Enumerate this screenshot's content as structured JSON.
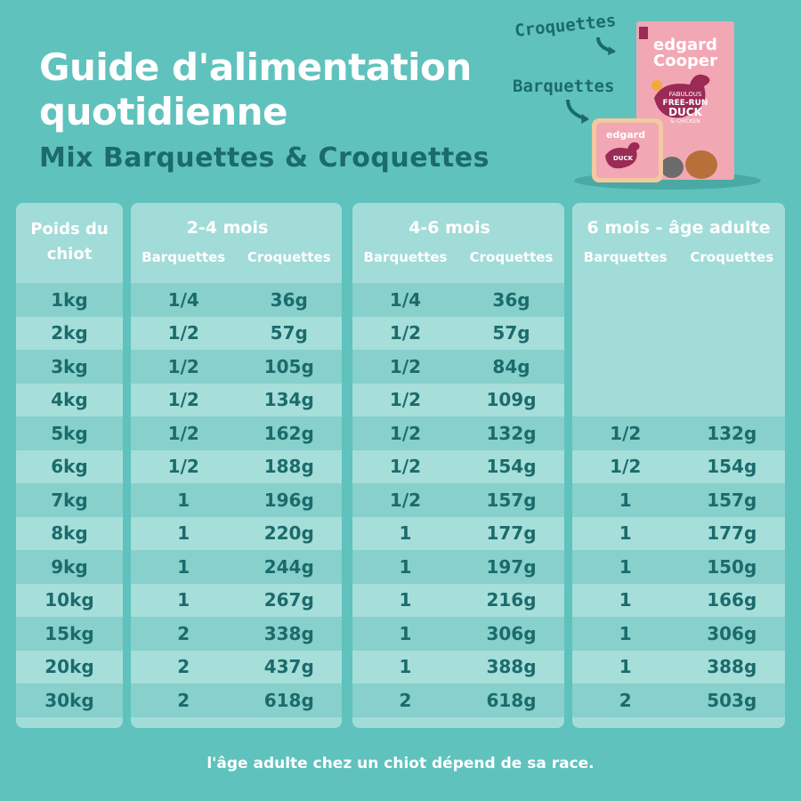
{
  "header": {
    "title_line1": "Guide d'alimentation",
    "title_line2": "quotidienne",
    "subtitle": "Mix Barquettes & Croquettes"
  },
  "product": {
    "label_kibble": "Croquettes",
    "label_tray": "Barquettes",
    "brand": "edgard Cooper",
    "bag_text": [
      "FABULOUS",
      "FREE-RUN",
      "DUCK",
      "& CHICKEN"
    ],
    "tray_text": [
      "DUCK",
      "& CHICKEN"
    ],
    "colors": {
      "pink": "#f2a7b4",
      "duck": "#9b2a55"
    }
  },
  "table": {
    "weight_header": "Poids du chiot",
    "sub_headers": [
      "Barquettes",
      "Croquettes"
    ],
    "groups": [
      "2-4 mois",
      "4-6 mois",
      "6 mois - âge adulte"
    ],
    "rows": [
      {
        "weight": "1kg",
        "g1": [
          "1/4",
          "36g"
        ],
        "g2": [
          "1/4",
          "36g"
        ],
        "g3": [
          "",
          ""
        ]
      },
      {
        "weight": "2kg",
        "g1": [
          "1/2",
          "57g"
        ],
        "g2": [
          "1/2",
          "57g"
        ],
        "g3": [
          "",
          ""
        ]
      },
      {
        "weight": "3kg",
        "g1": [
          "1/2",
          "105g"
        ],
        "g2": [
          "1/2",
          "84g"
        ],
        "g3": [
          "",
          ""
        ]
      },
      {
        "weight": "4kg",
        "g1": [
          "1/2",
          "134g"
        ],
        "g2": [
          "1/2",
          "109g"
        ],
        "g3": [
          "",
          ""
        ]
      },
      {
        "weight": "5kg",
        "g1": [
          "1/2",
          "162g"
        ],
        "g2": [
          "1/2",
          "132g"
        ],
        "g3": [
          "1/2",
          "132g"
        ]
      },
      {
        "weight": "6kg",
        "g1": [
          "1/2",
          "188g"
        ],
        "g2": [
          "1/2",
          "154g"
        ],
        "g3": [
          "1/2",
          "154g"
        ]
      },
      {
        "weight": "7kg",
        "g1": [
          "1",
          "196g"
        ],
        "g2": [
          "1/2",
          "157g"
        ],
        "g3": [
          "1",
          "157g"
        ]
      },
      {
        "weight": "8kg",
        "g1": [
          "1",
          "220g"
        ],
        "g2": [
          "1",
          "177g"
        ],
        "g3": [
          "1",
          "177g"
        ]
      },
      {
        "weight": "9kg",
        "g1": [
          "1",
          "244g"
        ],
        "g2": [
          "1",
          "197g"
        ],
        "g3": [
          "1",
          "150g"
        ]
      },
      {
        "weight": "10kg",
        "g1": [
          "1",
          "267g"
        ],
        "g2": [
          "1",
          "216g"
        ],
        "g3": [
          "1",
          "166g"
        ]
      },
      {
        "weight": "15kg",
        "g1": [
          "2",
          "338g"
        ],
        "g2": [
          "1",
          "306g"
        ],
        "g3": [
          "1",
          "306g"
        ]
      },
      {
        "weight": "20kg",
        "g1": [
          "2",
          "437g"
        ],
        "g2": [
          "1",
          "388g"
        ],
        "g3": [
          "1",
          "388g"
        ]
      },
      {
        "weight": "30kg",
        "g1": [
          "2",
          "618g"
        ],
        "g2": [
          "2",
          "618g"
        ],
        "g3": [
          "2",
          "503g"
        ]
      }
    ]
  },
  "footer": "l'âge adulte chez un chiot dépend de sa race."
}
